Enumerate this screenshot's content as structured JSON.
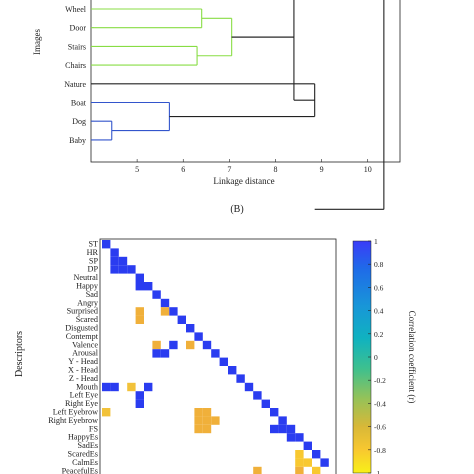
{
  "panel_label": "(B)",
  "chart_data": [
    {
      "type": "dendrogram",
      "xlabel": "Linkage distance",
      "ylabel": "Images",
      "xticks": [
        5,
        6,
        7,
        8,
        9,
        10
      ],
      "xlim": [
        4.0,
        10.7
      ],
      "leaves": [
        "Wheel",
        "Door",
        "Stairs",
        "Chairs",
        "Nature",
        "Boat",
        "Dog",
        "Baby"
      ],
      "merges": [
        {
          "a": "Wheel",
          "b": "Door",
          "height": 6.4,
          "color": "#88dd44"
        },
        {
          "a": "Stairs",
          "b": "Chairs",
          "height": 6.3,
          "color": "#88dd44"
        },
        {
          "a": "Wheel+Door",
          "b": "Stairs+Chairs",
          "height": 7.05,
          "color": "#88dd44"
        },
        {
          "a": "Dog",
          "b": "Baby",
          "height": 4.45,
          "color": "#3355cc"
        },
        {
          "a": "Boat",
          "b": "Dog+Baby",
          "height": 5.7,
          "color": "#3355cc"
        },
        {
          "a": "Nature",
          "b": "Boat+Dog+Baby",
          "height": 8.85,
          "color": "#222222"
        },
        {
          "a": "Wheel+Door+Stairs+Chairs",
          "b": "Nature+Boat+Dog+Baby",
          "height": 8.4,
          "color": "#222222"
        },
        {
          "a": "root-left",
          "b": "root-right",
          "height": 10.35,
          "color": "#222222"
        }
      ]
    },
    {
      "type": "heatmap",
      "ylabel": "Descriptors",
      "colorbar_label": "Correlation coefficient (r)",
      "colorbar_ticks": [
        1,
        0.8,
        0.6,
        0.4,
        0.2,
        0,
        -0.2,
        -0.4,
        -0.6,
        -0.8,
        -1
      ],
      "colorbar_range": [
        -1,
        1
      ],
      "rows": [
        "ST",
        "HR",
        "SP",
        "DP",
        "Neutral",
        "Happy",
        "Sad",
        "Angry",
        "Surprised",
        "Scared",
        "Disgusted",
        "Contempt",
        "Valence",
        "Arousal",
        "Y - Head",
        "X - Head",
        "Z - Head",
        "Mouth",
        "Left Eye",
        "Right Eye",
        "Left Eyebrow",
        "Right Eyebrow",
        "FS",
        "HappyEs",
        "SadEs",
        "ScaredEs",
        "CalmEs",
        "PeacefulEs"
      ],
      "cells": [
        [
          0,
          0,
          1
        ],
        [
          1,
          1,
          1
        ],
        [
          2,
          2,
          1
        ],
        [
          3,
          3,
          1
        ],
        [
          4,
          4,
          1
        ],
        [
          5,
          5,
          1
        ],
        [
          6,
          6,
          1
        ],
        [
          7,
          7,
          1
        ],
        [
          8,
          8,
          1
        ],
        [
          9,
          9,
          1
        ],
        [
          10,
          10,
          1
        ],
        [
          11,
          11,
          1
        ],
        [
          12,
          12,
          1
        ],
        [
          13,
          13,
          1
        ],
        [
          14,
          14,
          1
        ],
        [
          15,
          15,
          1
        ],
        [
          16,
          16,
          1
        ],
        [
          17,
          17,
          1
        ],
        [
          18,
          18,
          1
        ],
        [
          19,
          19,
          1
        ],
        [
          20,
          20,
          1
        ],
        [
          21,
          21,
          1
        ],
        [
          22,
          22,
          1
        ],
        [
          23,
          23,
          1
        ],
        [
          24,
          24,
          1
        ],
        [
          25,
          25,
          1
        ],
        [
          26,
          26,
          1
        ],
        [
          2,
          1,
          0.95
        ],
        [
          3,
          1,
          0.95
        ],
        [
          3,
          2,
          0.9
        ],
        [
          5,
          4,
          0.9
        ],
        [
          8,
          4,
          -0.6
        ],
        [
          9,
          4,
          -0.7
        ],
        [
          8,
          7,
          -0.6
        ],
        [
          12,
          6,
          -0.6
        ],
        [
          12,
          10,
          -0.6
        ],
        [
          13,
          6,
          0.95
        ],
        [
          13,
          7,
          0.95
        ],
        [
          12,
          8,
          0.9
        ],
        [
          17,
          0,
          0.9
        ],
        [
          17,
          1,
          0.9
        ],
        [
          17,
          3,
          -0.5
        ],
        [
          17,
          5,
          0.9
        ],
        [
          18,
          4,
          0.95
        ],
        [
          19,
          4,
          0.95
        ],
        [
          20,
          0,
          -0.55
        ],
        [
          20,
          11,
          -0.6
        ],
        [
          20,
          12,
          -0.65
        ],
        [
          21,
          11,
          -0.6
        ],
        [
          21,
          12,
          -0.6
        ],
        [
          22,
          11,
          -0.6
        ],
        [
          22,
          12,
          -0.65
        ],
        [
          21,
          13,
          -0.7
        ],
        [
          22,
          20,
          0.95
        ],
        [
          22,
          21,
          0.95
        ],
        [
          23,
          22,
          0.95
        ],
        [
          25,
          23,
          -0.75
        ],
        [
          26,
          23,
          -0.75
        ],
        [
          26,
          24,
          -0.8
        ],
        [
          27,
          18,
          -0.6
        ],
        [
          27,
          23,
          -0.7
        ],
        [
          27,
          25,
          -0.75
        ]
      ]
    }
  ]
}
